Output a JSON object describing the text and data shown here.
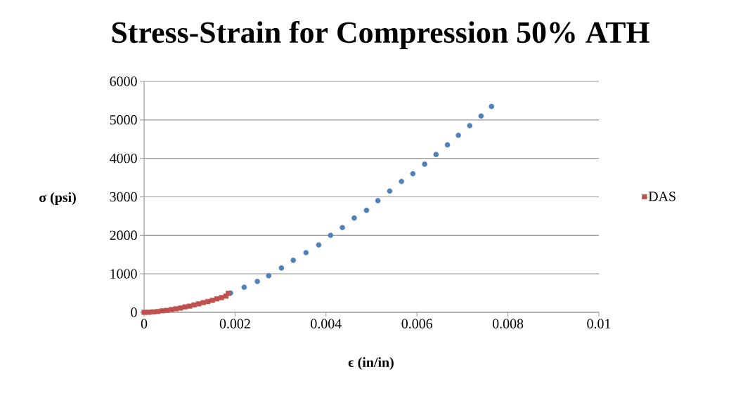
{
  "chart_data": {
    "type": "scatter",
    "title": "Stress-Strain for Compression 50% ATH",
    "xlabel": "ϵ (in/in)",
    "ylabel": "σ (psi)",
    "xlim": [
      0,
      0.01
    ],
    "ylim": [
      0,
      6000
    ],
    "xticks": [
      0,
      0.002,
      0.004,
      0.006,
      0.008,
      0.01
    ],
    "yticks": [
      0,
      1000,
      2000,
      3000,
      4000,
      5000,
      6000
    ],
    "grid": "y",
    "legend": "right",
    "series": [
      {
        "color": "#4f81bd",
        "marker": "circle",
        "x": [
          0.0019,
          0.0022,
          0.00249,
          0.00274,
          0.00302,
          0.00328,
          0.00356,
          0.00384,
          0.0041,
          0.00436,
          0.00462,
          0.00489,
          0.00514,
          0.0054,
          0.00566,
          0.00591,
          0.00617,
          0.00642,
          0.00667,
          0.00691,
          0.00716,
          0.00741,
          0.00764
        ],
        "values": [
          500,
          650,
          800,
          950,
          1150,
          1350,
          1550,
          1750,
          2000,
          2200,
          2450,
          2650,
          2900,
          3150,
          3400,
          3600,
          3850,
          4100,
          4350,
          4600,
          4850,
          5100,
          5350
        ]
      },
      {
        "name": "DAS",
        "color": "#c0504d",
        "marker": "square",
        "x": [
          0,
          0.0001,
          0.0002,
          0.0003,
          0.0004,
          0.0005,
          0.0006,
          0.0007,
          0.0008,
          0.0009,
          0.001,
          0.0011,
          0.0012,
          0.0013,
          0.0014,
          0.0015,
          0.0016,
          0.0017,
          0.0018,
          0.00185
        ],
        "values": [
          0,
          0,
          10,
          20,
          40,
          50,
          70,
          90,
          110,
          140,
          160,
          190,
          220,
          250,
          280,
          310,
          350,
          380,
          420,
          490
        ]
      }
    ]
  }
}
